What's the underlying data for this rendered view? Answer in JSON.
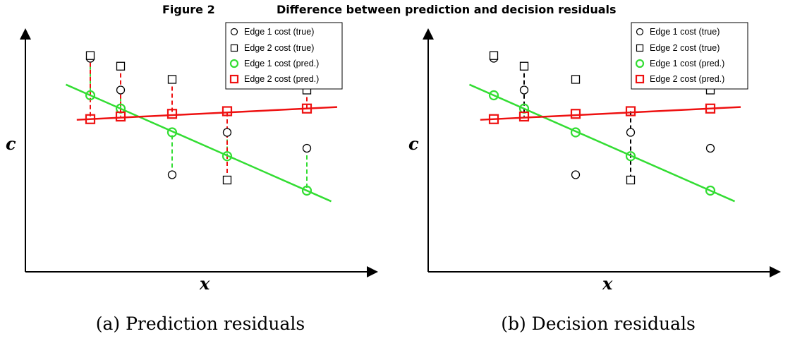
{
  "figure": {
    "title_prefix": "Figure 2",
    "title_text": "Difference between prediction and decision residuals"
  },
  "legend": {
    "edge1_true": "Edge 1 cost (true)",
    "edge2_true": "Edge 2 cost (true)",
    "edge1_pred": "Edge 1 cost (pred.)",
    "edge2_pred": "Edge 2 cost (pred.)"
  },
  "colors": {
    "edge1_pred": "#33dd33",
    "edge2_pred": "#ee1111",
    "true_marker": "#000000",
    "decision_residual": "#000000"
  },
  "panels": [
    {
      "id": "a",
      "xlabel": "x",
      "ylabel": "c",
      "caption": "(a) Prediction residuals",
      "residuals": "prediction"
    },
    {
      "id": "b",
      "xlabel": "x",
      "ylabel": "c",
      "caption": "(b) Decision residuals",
      "residuals": "decision"
    }
  ],
  "chart_data": {
    "type": "scatter",
    "note_units": "relative (no tick labels shown)",
    "x": [
      1,
      2,
      3,
      4,
      5
    ],
    "series": [
      {
        "name": "Edge 1 cost (true)",
        "marker": "circle",
        "values": [
          8.6,
          7.4,
          4.2,
          5.8,
          5.2
        ]
      },
      {
        "name": "Edge 2 cost (true)",
        "marker": "square",
        "values": [
          8.7,
          8.3,
          7.8,
          4.0,
          7.4
        ]
      },
      {
        "name": "Edge 1 cost (pred.)",
        "marker": "circle",
        "values": [
          7.2,
          6.7,
          5.8,
          4.9,
          3.6
        ]
      },
      {
        "name": "Edge 2 cost (pred.)",
        "marker": "square",
        "values": [
          6.3,
          6.4,
          6.5,
          6.6,
          6.7
        ]
      }
    ],
    "decision_residual_indices": [
      1,
      3
    ]
  }
}
